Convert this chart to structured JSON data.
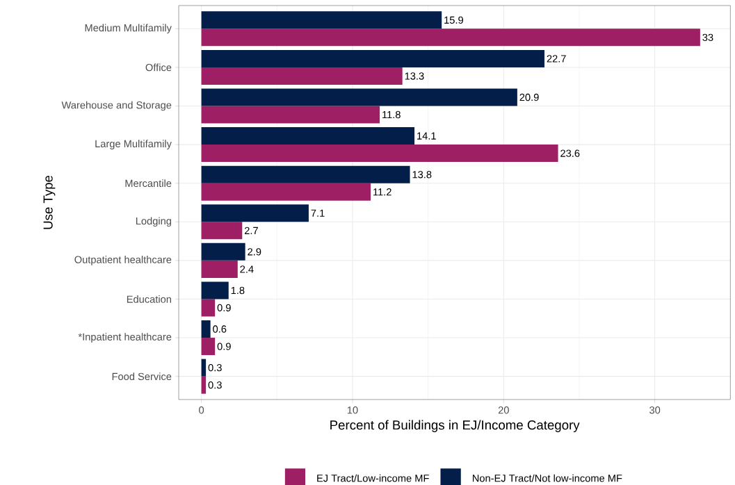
{
  "chart_data": {
    "type": "bar",
    "orientation": "horizontal",
    "xlabel": "Percent of Buildings in EJ/Income Category",
    "ylabel": "Use Type",
    "categories": [
      "Medium Multifamily",
      "Office",
      "Warehouse and Storage",
      "Large Multifamily",
      "Mercantile",
      "Lodging",
      "Outpatient healthcare",
      "Education",
      "*Inpatient healthcare",
      "Food Service"
    ],
    "series": [
      {
        "name": "EJ Tract/Low-income MF",
        "color": "#9e1f63",
        "values": [
          33,
          13.3,
          11.8,
          23.6,
          11.2,
          2.7,
          2.4,
          0.9,
          0.9,
          0.3
        ]
      },
      {
        "name": "Non-EJ Tract/Not low-income MF",
        "color": "#041e4a",
        "values": [
          15.9,
          22.7,
          20.9,
          14.1,
          13.8,
          7.1,
          2.9,
          1.8,
          0.6,
          0.3
        ]
      }
    ],
    "xlim": [
      -1.5,
      35
    ],
    "xticks": [
      0,
      10,
      20,
      30
    ],
    "grid": true,
    "legend": "bottom",
    "data_labels": true
  }
}
